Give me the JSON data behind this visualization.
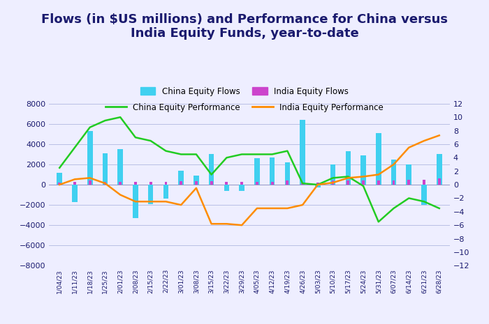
{
  "title": "Flows (in $US millions) and Performance for China versus\nIndia Equity Funds, year-to-date",
  "dates": [
    "1/04/23",
    "1/11/23",
    "1/18/23",
    "1/25/23",
    "2/01/23",
    "2/08/23",
    "2/15/23",
    "2/22/23",
    "3/01/23",
    "3/08/23",
    "3/15/23",
    "3/22/23",
    "3/29/23",
    "4/05/23",
    "4/12/23",
    "4/19/23",
    "4/26/23",
    "5/03/23",
    "5/10/23",
    "5/17/23",
    "5/24/23",
    "5/31/23",
    "6/07/23",
    "6/14/23",
    "6/21/23",
    "6/28/23"
  ],
  "china_flows": [
    1200,
    -1700,
    5300,
    3100,
    3500,
    -3300,
    -1900,
    -1400,
    1400,
    900,
    3000,
    -600,
    -600,
    2600,
    2700,
    2200,
    6400,
    -300,
    2000,
    3300,
    2900,
    5100,
    2500,
    2000,
    -2000,
    3000
  ],
  "india_flows": [
    200,
    300,
    400,
    300,
    300,
    300,
    300,
    300,
    350,
    350,
    350,
    300,
    300,
    300,
    300,
    400,
    200,
    200,
    400,
    400,
    400,
    400,
    400,
    500,
    500,
    600
  ],
  "china_perf": [
    2.5,
    5.5,
    8.5,
    9.5,
    10.0,
    7.0,
    6.5,
    5.0,
    4.5,
    4.5,
    1.5,
    4.0,
    4.5,
    4.5,
    4.5,
    5.0,
    0.2,
    0.0,
    1.0,
    1.2,
    -0.2,
    -5.5,
    -3.5,
    -2.0,
    -2.5,
    -3.5
  ],
  "india_perf": [
    0.0,
    0.8,
    1.0,
    0.2,
    -1.5,
    -2.5,
    -2.5,
    -2.5,
    -3.0,
    -0.5,
    -5.8,
    -5.8,
    -6.0,
    -3.5,
    -3.5,
    -3.5,
    -3.0,
    0.0,
    0.3,
    1.0,
    1.2,
    1.5,
    3.0,
    5.5,
    6.5,
    7.3
  ],
  "china_flow_color": "#40D0F0",
  "india_flow_color": "#CC44CC",
  "china_perf_color": "#22CC22",
  "india_perf_color": "#FF8C00",
  "bg_color": "#EEEEFF",
  "title_color": "#1a1a6e",
  "ylim_left": [
    -8000,
    8000
  ],
  "ylim_right": [
    -12,
    12
  ],
  "bar_width": 0.35
}
